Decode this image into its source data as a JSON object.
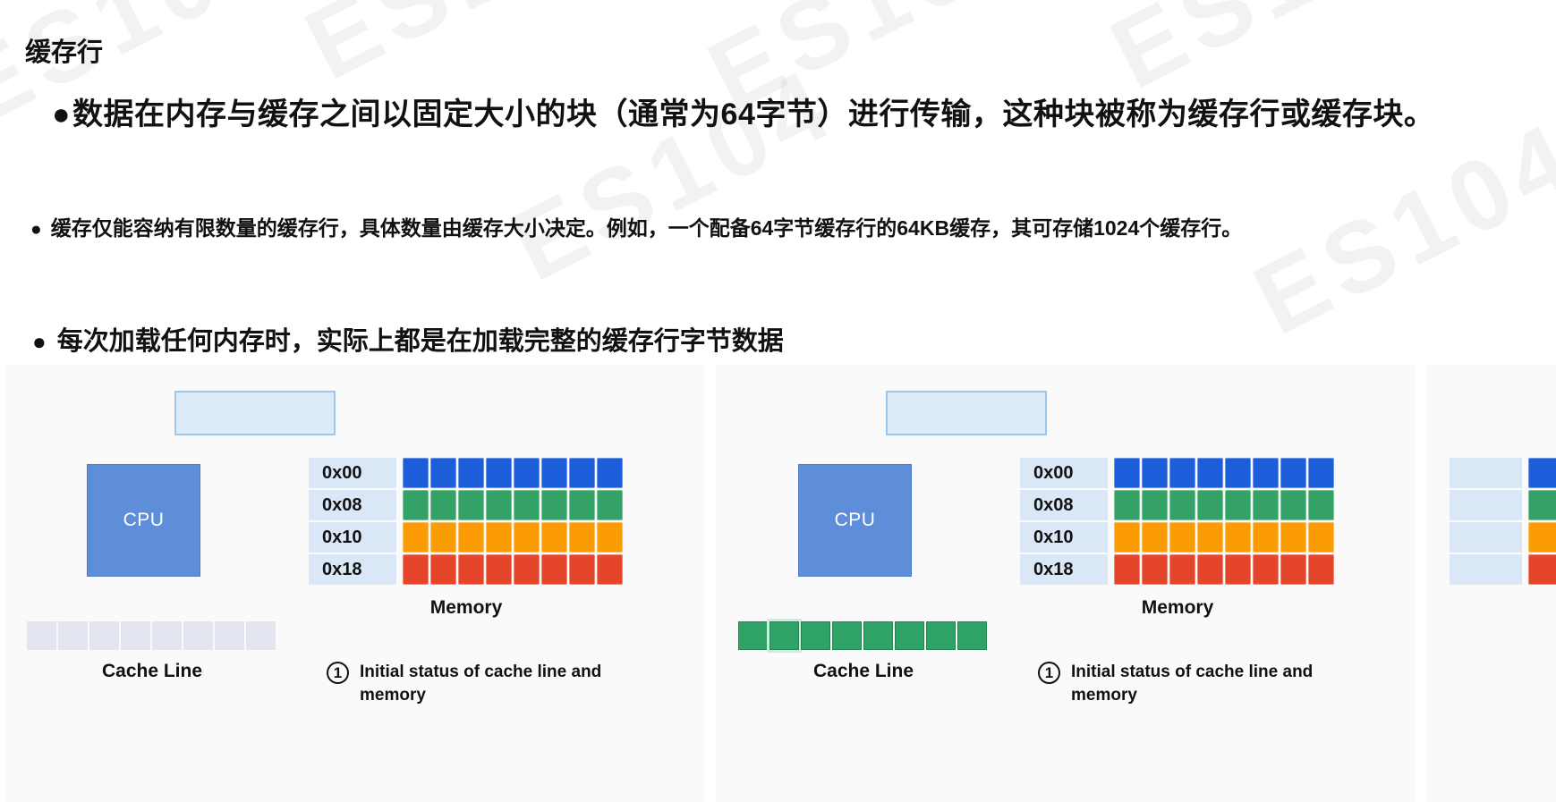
{
  "page": {
    "title": "缓存行"
  },
  "bullets": [
    {
      "marker": "●",
      "text": "数据在内存与缓存之间以固定大小的块（通常为64字节）进行传输，这种块被称为缓存行或缓存块。"
    },
    {
      "marker": "●",
      "text": "缓存仅能容纳有限数量的缓存行，具体数量由缓存大小决定。例如，一个配备64字节缓存行的64KB缓存，其可存储1024个缓存行。"
    },
    {
      "marker": "●",
      "text": "每次加载任何内存时，实际上都是在加载完整的缓存行字节数据"
    }
  ],
  "diagram": {
    "cpu_label": "CPU",
    "memory_label": "Memory",
    "cache_line_label": "Cache Line",
    "caption": {
      "number": "1",
      "text": "Initial status of cache line and memory"
    },
    "memory": {
      "addresses": [
        "0x00",
        "0x08",
        "0x10",
        "0x18"
      ],
      "cells_per_row": 8,
      "row_colors": [
        "#1c5dd9",
        "#34a266",
        "#fb9c05",
        "#e5452b"
      ]
    },
    "panels": [
      {
        "name": "left",
        "cache_line": {
          "state": "empty",
          "cell_color": "#e3e6f1",
          "cell_count": 8
        }
      },
      {
        "name": "right",
        "cache_line": {
          "state": "filled",
          "cell_color": "#2fa266",
          "cell_count": 8,
          "highlight_cell_index": 1
        }
      }
    ]
  },
  "watermark": {
    "text": "ES104"
  },
  "colors": {
    "panel_bg": "#fafafa",
    "address_box": "#dae7f7",
    "cpu_fill": "#5e8eda",
    "cpu_border": "#4d7dc8",
    "placeholder_fill": "#ddecf8",
    "placeholder_border": "#9fc5e8"
  }
}
